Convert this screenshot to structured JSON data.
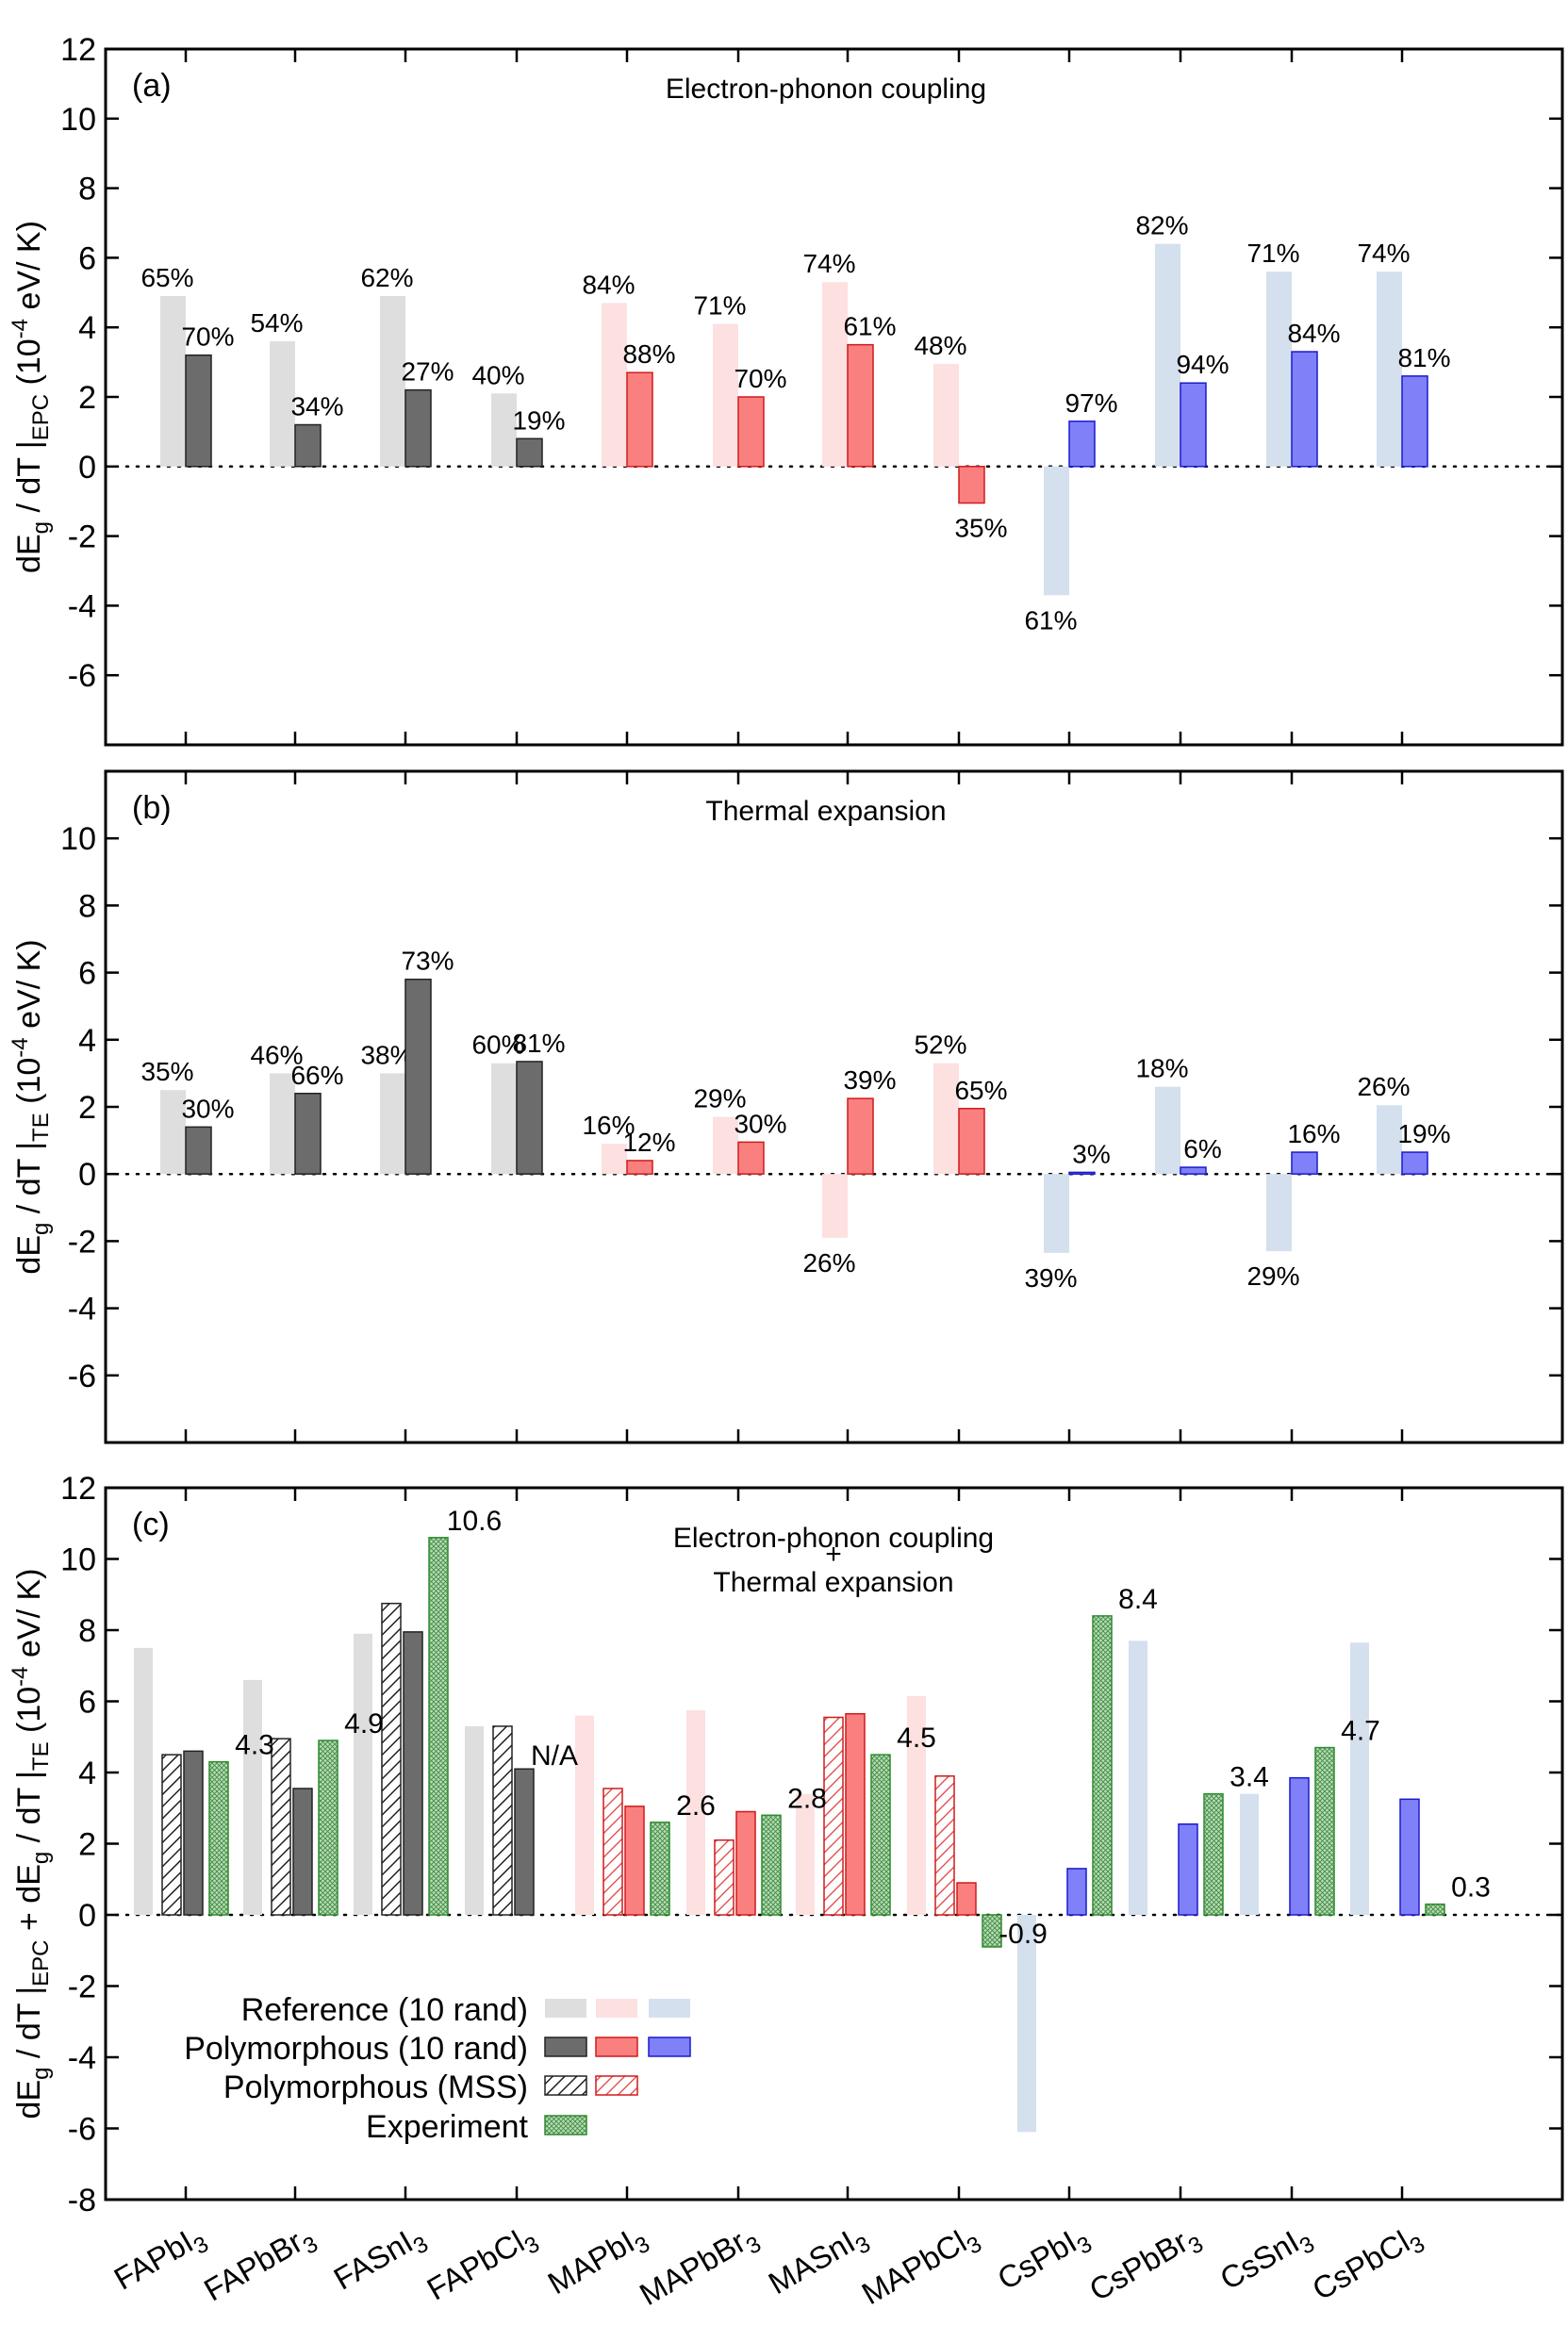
{
  "colors": {
    "FA_ref": "#dedede",
    "FA_poly": "#6c6c6c",
    "FA_poly_edge": "#222222",
    "MA_ref": "#fde0e0",
    "MA_poly": "#fa8080",
    "MA_poly_edge": "#d11a1a",
    "Cs_ref": "#d5e0ee",
    "Cs_poly": "#8080f8",
    "Cs_poly_edge": "#1a1ad0",
    "exp": "#b9dab9",
    "exp_edge": "#2e8b2e"
  },
  "chart_data": {
    "type": "bar",
    "categories": [
      "FAPbI",
      "FAPbBr",
      "FASnI",
      "FAPbCl",
      "MAPbI",
      "MAPbBr",
      "MASnI",
      "MAPbCl",
      "CsPbI",
      "CsPbBr",
      "CsSnI",
      "CsPbCl"
    ],
    "categories_subscript": "3",
    "category_groups": [
      "FA",
      "FA",
      "FA",
      "FA",
      "MA",
      "MA",
      "MA",
      "MA",
      "Cs",
      "Cs",
      "Cs",
      "Cs"
    ],
    "panels": [
      {
        "letter": "(a)",
        "title": "Electron-phonon coupling",
        "ylabel_main": "dE",
        "ylabel_sub1": "g",
        "ylabel_mid": " / dT |",
        "ylabel_sub2": "EPC",
        "ylabel_unit1": " (10",
        "ylabel_sup": "-4",
        "ylabel_unit2": " eV/ K)",
        "ylim": [
          -8,
          12
        ],
        "yticks": [
          "12",
          "10",
          "8",
          "6",
          "4",
          "2",
          "0",
          "-2",
          "-4",
          "-6"
        ],
        "series": [
          {
            "kind": "ref",
            "values": [
              4.9,
              3.6,
              4.9,
              2.1,
              4.7,
              4.1,
              5.3,
              2.95,
              -3.7,
              6.4,
              5.6,
              5.6
            ],
            "labels": [
              "65%",
              "54%",
              "62%",
              "40%",
              "84%",
              "71%",
              "74%",
              "48%",
              "61%",
              "82%",
              "71%",
              "74%"
            ]
          },
          {
            "kind": "poly",
            "values": [
              3.2,
              1.2,
              2.2,
              0.8,
              2.7,
              2.0,
              3.5,
              -1.05,
              1.3,
              2.4,
              3.3,
              2.6
            ],
            "labels": [
              "70%",
              "34%",
              "27%",
              "19%",
              "88%",
              "70%",
              "61%",
              "35%",
              "97%",
              "94%",
              "84%",
              "81%"
            ]
          }
        ]
      },
      {
        "letter": "(b)",
        "title": "Thermal expansion",
        "ylabel_main": "dE",
        "ylabel_sub1": "g",
        "ylabel_mid": " / dT |",
        "ylabel_sub2": "TE",
        "ylabel_unit1": " (10",
        "ylabel_sup": "-4",
        "ylabel_unit2": " eV/ K)",
        "ylim": [
          -8,
          12
        ],
        "yticks": [
          "10",
          "8",
          "6",
          "4",
          "2",
          "0",
          "-2",
          "-4",
          "-6"
        ],
        "series": [
          {
            "kind": "ref",
            "values": [
              2.5,
              3.0,
              3.0,
              3.3,
              0.9,
              1.7,
              -1.9,
              3.3,
              -2.35,
              2.6,
              -2.3,
              2.05
            ],
            "labels": [
              "35%",
              "46%",
              "38%",
              "60%",
              "16%",
              "29%",
              "26%",
              "52%",
              "39%",
              "18%",
              "29%",
              "26%"
            ]
          },
          {
            "kind": "poly",
            "values": [
              1.4,
              2.4,
              5.8,
              3.35,
              0.4,
              0.95,
              2.25,
              1.95,
              0.05,
              0.2,
              0.65,
              0.65
            ],
            "labels": [
              "30%",
              "66%",
              "73%",
              "81%",
              "12%",
              "30%",
              "39%",
              "65%",
              "3%",
              "6%",
              "16%",
              "19%"
            ]
          }
        ]
      },
      {
        "letter": "(c)",
        "title_line1": "Electron-phonon coupling",
        "title_line2": "+",
        "title_line3": "Thermal expansion",
        "ylim": [
          -8,
          12
        ],
        "yticks": [
          "12",
          "10",
          "8",
          "6",
          "4",
          "2",
          "0",
          "-2",
          "-4",
          "-6",
          "-8"
        ],
        "ylabel_parts": [
          "dE",
          "g",
          " / dT |",
          "EPC",
          " + dE",
          "g",
          " / dT |",
          "TE",
          " (10",
          "-4",
          " eV/ K)"
        ],
        "series": [
          {
            "kind": "ref",
            "values": [
              7.5,
              6.6,
              7.9,
              5.3,
              5.6,
              5.75,
              3.4,
              6.15,
              -6.1,
              7.7,
              3.4,
              7.65
            ]
          },
          {
            "kind": "mss",
            "values": [
              4.5,
              4.95,
              8.75,
              5.3,
              3.55,
              2.1,
              5.55,
              3.9,
              null,
              null,
              null,
              null
            ]
          },
          {
            "kind": "poly",
            "values": [
              4.6,
              3.55,
              7.95,
              4.1,
              3.05,
              2.9,
              5.65,
              0.9,
              1.3,
              2.55,
              3.85,
              3.25
            ]
          },
          {
            "kind": "exp",
            "values": [
              4.3,
              4.9,
              10.6,
              null,
              2.6,
              2.8,
              4.5,
              -0.9,
              8.4,
              3.4,
              4.7,
              0.3
            ],
            "labels": [
              "4.3",
              "4.9",
              "10.6",
              "N/A",
              "2.6",
              "2.8",
              "4.5",
              "-0.9",
              "8.4",
              "3.4",
              "4.7",
              "0.3"
            ]
          }
        ],
        "legend": [
          {
            "label": "Reference (10 rand)",
            "swatches": [
              "FA_ref",
              "MA_ref",
              "Cs_ref"
            ]
          },
          {
            "label": "Polymorphous (10 rand)",
            "swatches": [
              "FA_poly",
              "MA_poly",
              "Cs_poly"
            ]
          },
          {
            "label": "Polymorphous (MSS)",
            "swatches": [
              "FA_mss",
              "MA_mss"
            ]
          },
          {
            "label": "Experiment",
            "swatches": [
              "exp"
            ]
          }
        ]
      }
    ]
  }
}
